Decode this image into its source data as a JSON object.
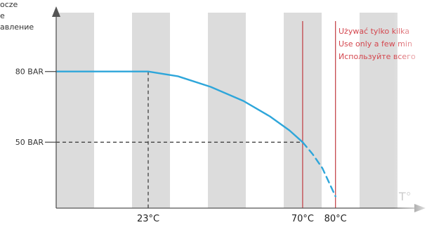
{
  "chart_data": {
    "type": "line",
    "title": "",
    "ylabel_lines": [
      "осze",
      "е",
      "авление"
    ],
    "xlabel": "T°",
    "x_ticks": [
      {
        "value": 23,
        "label": "23°C"
      },
      {
        "value": 70,
        "label": "70°C"
      },
      {
        "value": 80,
        "label": "80°C"
      }
    ],
    "y_ticks": [
      {
        "value": 80,
        "label": "80 BAR"
      },
      {
        "value": 50,
        "label": "50 BAR"
      }
    ],
    "xlim": [
      -5,
      104
    ],
    "ylim": [
      22,
      105
    ],
    "series": [
      {
        "style": "solid",
        "color": "#2ea6da",
        "points": [
          [
            -5,
            80
          ],
          [
            23,
            80
          ],
          [
            32,
            78
          ],
          [
            42,
            73.5
          ],
          [
            52,
            67.5
          ],
          [
            60,
            61
          ],
          [
            66,
            55
          ],
          [
            70,
            50
          ]
        ]
      },
      {
        "style": "dashed",
        "color": "#2ea6da",
        "points": [
          [
            70,
            50
          ],
          [
            73,
            45
          ],
          [
            76,
            39
          ],
          [
            80,
            27
          ]
        ]
      }
    ],
    "reference_lines": [
      {
        "axis": "y",
        "value": 80,
        "x_to": 23,
        "style": "solid"
      },
      {
        "axis": "y",
        "value": 50,
        "x_to": 70,
        "style": "dashed"
      },
      {
        "axis": "x",
        "value": 23,
        "y_to": 80,
        "style": "dashed"
      }
    ],
    "limit_lines": [
      {
        "axis": "x",
        "value": 70,
        "color": "#c0393f"
      },
      {
        "axis": "x",
        "value": 80,
        "color": "#c0393f"
      }
    ],
    "annotations": [
      "Używać tylko kilka",
      "Use only a few min",
      "Используйте всего"
    ],
    "background_stripe_count": 9,
    "grid": false,
    "legend": "none"
  }
}
